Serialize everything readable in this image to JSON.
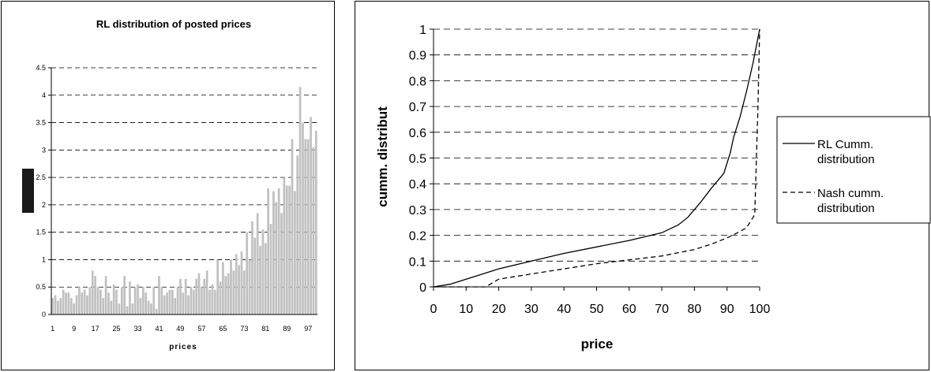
{
  "chart_data": [
    {
      "type": "bar",
      "title": "RL distribution of posted prices",
      "xlabel": "prices",
      "ylabel": "",
      "ylim": [
        0,
        4.5
      ],
      "yticks": [
        "0",
        "0.5",
        "1",
        "1.5",
        "2",
        "2.5",
        "3",
        "3.5",
        "4",
        "4.5"
      ],
      "xticks": [
        "1",
        "9",
        "17",
        "25",
        "33",
        "41",
        "49",
        "57",
        "65",
        "73",
        "81",
        "89",
        "97"
      ],
      "grid": true,
      "categories": [
        1,
        2,
        3,
        4,
        5,
        6,
        7,
        8,
        9,
        10,
        11,
        12,
        13,
        14,
        15,
        16,
        17,
        18,
        19,
        20,
        21,
        22,
        23,
        24,
        25,
        26,
        27,
        28,
        29,
        30,
        31,
        32,
        33,
        34,
        35,
        36,
        37,
        38,
        39,
        40,
        41,
        42,
        43,
        44,
        45,
        46,
        47,
        48,
        49,
        50,
        51,
        52,
        53,
        54,
        55,
        56,
        57,
        58,
        59,
        60,
        61,
        62,
        63,
        64,
        65,
        66,
        67,
        68,
        69,
        70,
        71,
        72,
        73,
        74,
        75,
        76,
        77,
        78,
        79,
        80,
        81,
        82,
        83,
        84,
        85,
        86,
        87,
        88,
        89,
        90,
        91,
        92,
        93,
        94,
        95,
        96,
        97,
        98,
        99,
        100
      ],
      "values": [
        0.3,
        0.35,
        0.25,
        0.3,
        0.45,
        0.4,
        0.4,
        0.3,
        0.2,
        0.35,
        0.5,
        0.4,
        0.45,
        0.35,
        0.5,
        0.8,
        0.7,
        0.5,
        0.45,
        0.3,
        0.7,
        0.4,
        0.25,
        0.55,
        0.45,
        0.2,
        0.5,
        0.7,
        0.15,
        0.6,
        0.2,
        0.5,
        0.55,
        0.3,
        0.5,
        0.4,
        0.25,
        0.2,
        0.5,
        0.1,
        0.7,
        0.5,
        0.35,
        0.4,
        0.45,
        0.45,
        0.3,
        0.5,
        0.65,
        0.4,
        0.65,
        0.35,
        0.5,
        0.45,
        0.65,
        0.75,
        0.5,
        0.65,
        0.8,
        0.45,
        0.55,
        0.45,
        1.0,
        0.6,
        0.95,
        0.7,
        0.75,
        1.0,
        0.8,
        1.1,
        0.9,
        1.15,
        0.8,
        1.5,
        1.0,
        1.7,
        1.4,
        1.85,
        1.25,
        1.55,
        1.3,
        2.3,
        1.65,
        2.25,
        2.05,
        2.3,
        1.85,
        2.5,
        2.35,
        2.35,
        3.2,
        2.25,
        2.9,
        4.15,
        3.5,
        3.2,
        3.2,
        3.6,
        3.05,
        3.35
      ]
    },
    {
      "type": "line",
      "title": "",
      "xlabel": "price",
      "ylabel": "cumm. distribut",
      "xlim": [
        0,
        100
      ],
      "ylim": [
        0,
        1
      ],
      "xticks": [
        "0",
        "10",
        "20",
        "30",
        "40",
        "50",
        "60",
        "70",
        "80",
        "90",
        "100"
      ],
      "yticks": [
        "0",
        "0.1",
        "0.2",
        "0.3",
        "0.4",
        "0.5",
        "0.6",
        "0.7",
        "0.8",
        "0.9",
        "1"
      ],
      "grid": true,
      "legend_position": "right",
      "series": [
        {
          "name": "RL Cumm. distribution",
          "style": "solid",
          "x": [
            0,
            5,
            10,
            20,
            30,
            40,
            50,
            60,
            70,
            75,
            78,
            80,
            82,
            85,
            87,
            89,
            90,
            91,
            92,
            94,
            96,
            98,
            100
          ],
          "y": [
            0,
            0.01,
            0.03,
            0.07,
            0.1,
            0.13,
            0.155,
            0.18,
            0.21,
            0.24,
            0.27,
            0.3,
            0.33,
            0.38,
            0.41,
            0.44,
            0.48,
            0.52,
            0.58,
            0.66,
            0.76,
            0.87,
            1.0
          ]
        },
        {
          "name": "Nash cumm. distribution",
          "style": "dashed",
          "x": [
            0,
            16,
            20,
            30,
            40,
            50,
            60,
            70,
            80,
            85,
            90,
            94,
            96,
            98.5,
            99,
            99.5,
            100
          ],
          "y": [
            0,
            0,
            0.03,
            0.05,
            0.07,
            0.09,
            0.105,
            0.12,
            0.145,
            0.165,
            0.19,
            0.215,
            0.23,
            0.28,
            0.5,
            0.7,
            1.0
          ]
        }
      ]
    }
  ]
}
